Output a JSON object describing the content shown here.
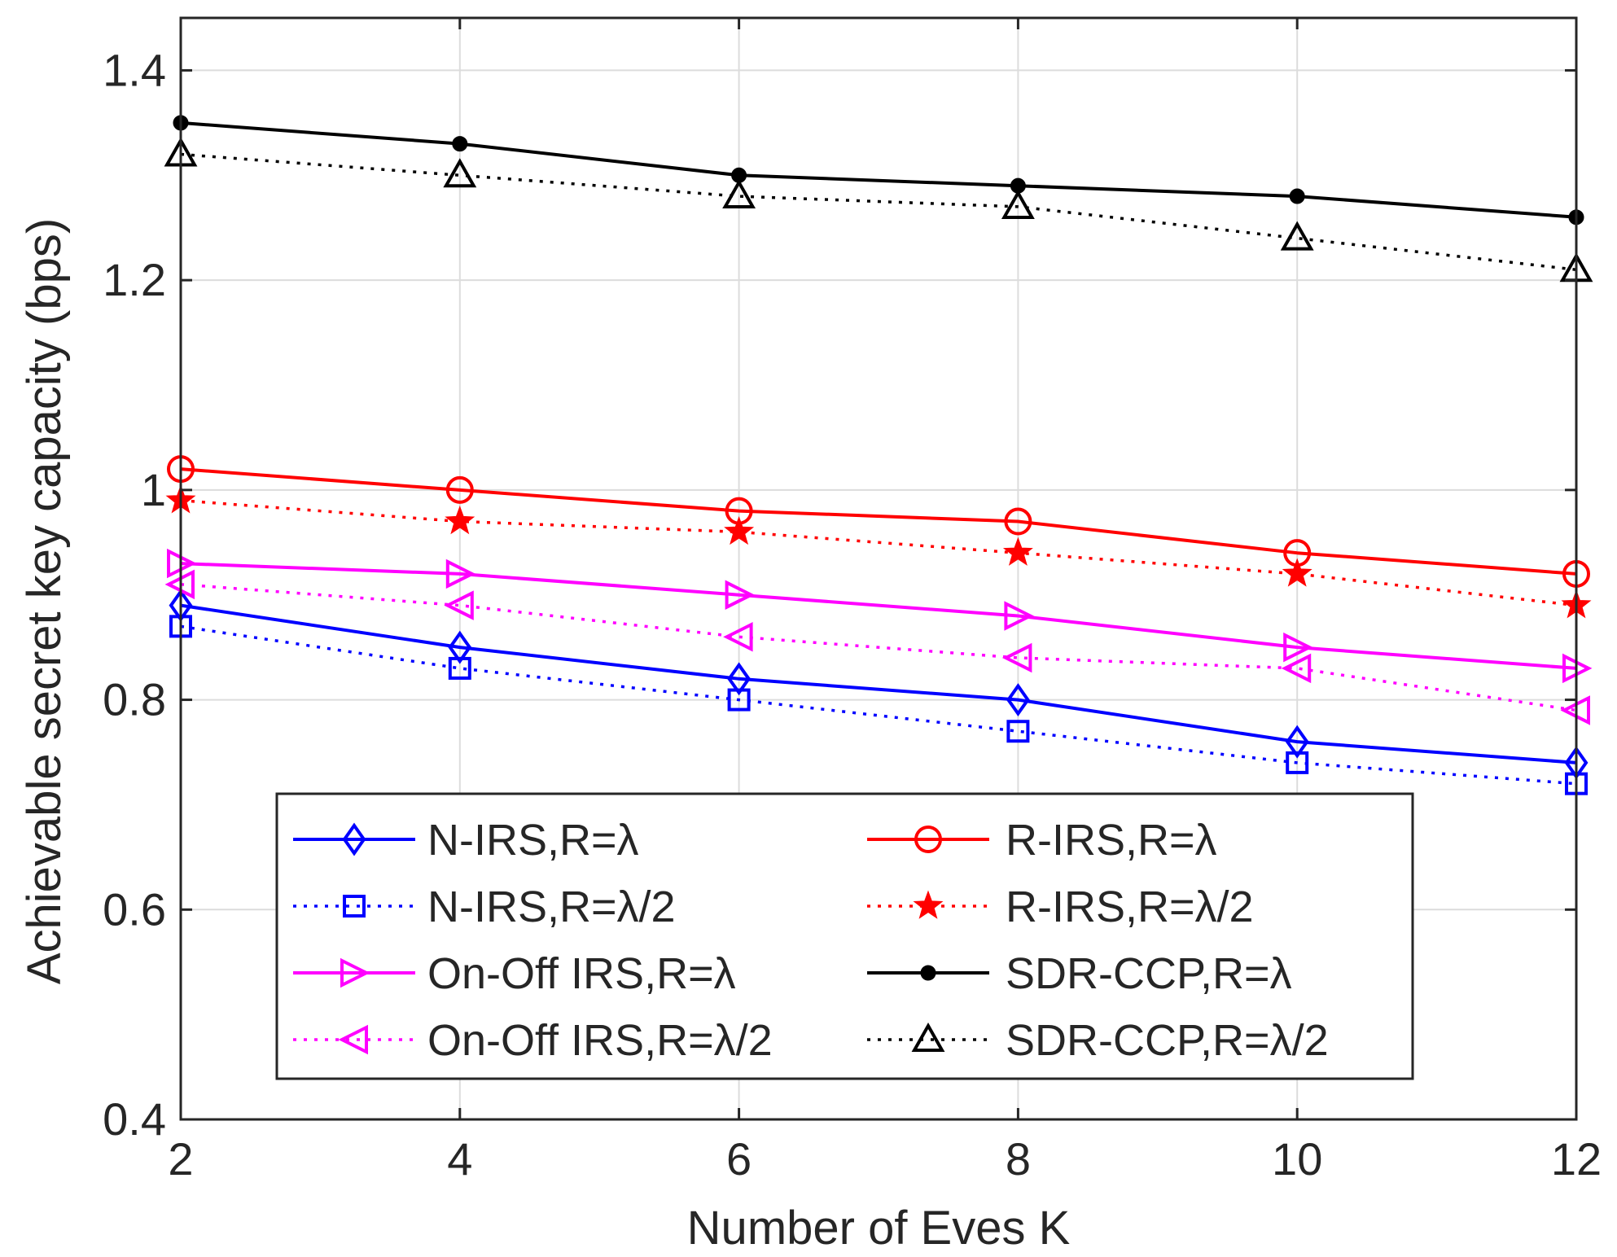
{
  "chart_data": {
    "type": "line",
    "title": "",
    "xlabel": "Number of Eves K",
    "ylabel": "Achievable secret key capacity (bps)",
    "x": [
      2,
      4,
      6,
      8,
      10,
      12
    ],
    "xlim": [
      2,
      12
    ],
    "ylim": [
      0.4,
      1.45
    ],
    "xticks": [
      2,
      4,
      6,
      8,
      10,
      12
    ],
    "xtick_labels": [
      "2",
      "4",
      "6",
      "8",
      "10",
      "12"
    ],
    "yticks": [
      0.4,
      0.6,
      0.8,
      1.0,
      1.2,
      1.4
    ],
    "ytick_labels": [
      "0.4",
      "0.6",
      "0.8",
      "1",
      "1.2",
      "1.4"
    ],
    "grid": true,
    "legend_position": "bottom-center",
    "series": [
      {
        "name": "N-IRS,R=λ",
        "values": [
          0.89,
          0.85,
          0.82,
          0.8,
          0.76,
          0.74
        ],
        "color": "#0000ff",
        "line": "solid",
        "marker": "diamond"
      },
      {
        "name": "N-IRS,R=λ/2",
        "values": [
          0.87,
          0.83,
          0.8,
          0.77,
          0.74,
          0.72
        ],
        "color": "#0000ff",
        "line": "dotted",
        "marker": "square"
      },
      {
        "name": "On-Off IRS,R=λ",
        "values": [
          0.93,
          0.92,
          0.9,
          0.88,
          0.85,
          0.83
        ],
        "color": "#ff00ff",
        "line": "solid",
        "marker": "triangle-right"
      },
      {
        "name": "On-Off IRS,R=λ/2",
        "values": [
          0.91,
          0.89,
          0.86,
          0.84,
          0.83,
          0.79
        ],
        "color": "#ff00ff",
        "line": "dotted",
        "marker": "triangle-left"
      },
      {
        "name": "R-IRS,R=λ",
        "values": [
          1.02,
          1.0,
          0.98,
          0.97,
          0.94,
          0.92
        ],
        "color": "#ff0000",
        "line": "solid",
        "marker": "circle"
      },
      {
        "name": "R-IRS,R=λ/2",
        "values": [
          0.99,
          0.97,
          0.96,
          0.94,
          0.92,
          0.89
        ],
        "color": "#ff0000",
        "line": "dotted",
        "marker": "star"
      },
      {
        "name": "SDR-CCP,R=λ",
        "values": [
          1.35,
          1.33,
          1.3,
          1.29,
          1.28,
          1.26
        ],
        "color": "#000000",
        "line": "solid",
        "marker": "dot"
      },
      {
        "name": "SDR-CCP,R=λ/2",
        "values": [
          1.32,
          1.3,
          1.28,
          1.27,
          1.24,
          1.21
        ],
        "color": "#000000",
        "line": "dotted",
        "marker": "triangle-up"
      }
    ]
  }
}
